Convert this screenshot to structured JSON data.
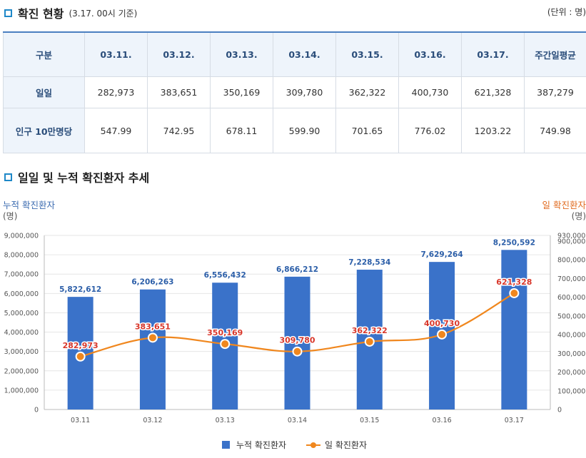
{
  "header": {
    "title": "확진 현황",
    "subtitle": "(3.17. 00시 기준)",
    "unit": "(단위 : 명)"
  },
  "table": {
    "columns": [
      "구분",
      "03.11.",
      "03.12.",
      "03.13.",
      "03.14.",
      "03.15.",
      "03.16.",
      "03.17.",
      "주간일평균"
    ],
    "rows": [
      {
        "label": "일일",
        "values": [
          "282,973",
          "383,651",
          "350,169",
          "309,780",
          "362,322",
          "400,730",
          "621,328",
          "387,279"
        ]
      },
      {
        "label": "인구 10만명당",
        "values": [
          "547.99",
          "742.95",
          "678.11",
          "599.90",
          "701.65",
          "776.02",
          "1203.22",
          "749.98"
        ]
      }
    ]
  },
  "trend_section": {
    "title": "일일 및 누적 확진환자 추세"
  },
  "chart_data": {
    "type": "bar",
    "categories": [
      "03.11",
      "03.12",
      "03.13",
      "03.14",
      "03.15",
      "03.16",
      "03.17"
    ],
    "ylabel_left": "누적 확진환자",
    "ylabel_left_unit": "(명)",
    "ylabel_right": "일 확진환자",
    "ylabel_right_unit": "(명)",
    "ylim_left": [
      0,
      9000000
    ],
    "yticks_left": [
      "0",
      "1,000,000",
      "2,000,000",
      "3,000,000",
      "4,000,000",
      "5,000,000",
      "6,000,000",
      "7,000,000",
      "8,000,000",
      "9,000,000"
    ],
    "ylim_right": [
      0,
      930000
    ],
    "yticks_right": [
      "0",
      "100,000",
      "200,000",
      "300,000",
      "400,000",
      "500,000",
      "600,000",
      "700,000",
      "800,000",
      "900,000",
      "930,000"
    ],
    "series": [
      {
        "name": "누적 확진환자",
        "type": "bar",
        "axis": "left",
        "color": "#3a72c9",
        "values": [
          5822612,
          6206263,
          6556432,
          6866212,
          7228534,
          7629264,
          8250592
        ],
        "labels": [
          "5,822,612",
          "6,206,263",
          "6,556,432",
          "6,866,212",
          "7,228,534",
          "7,629,264",
          "8,250,592"
        ]
      },
      {
        "name": "일 확진환자",
        "type": "line",
        "axis": "right",
        "color": "#f0871e",
        "values": [
          282973,
          383651,
          350169,
          309780,
          362322,
          400730,
          621328
        ],
        "labels": [
          "282,973",
          "383,651",
          "350,169",
          "309,780",
          "362,322",
          "400,730",
          "621,328"
        ]
      }
    ],
    "grid": true,
    "legend": "bottom-center",
    "colors": {
      "bar": "#3a72c9",
      "line": "#f0871e",
      "bar_label": "#2b5ea8",
      "line_label": "#d8362a",
      "left_axis_title": "#3b6bb0",
      "right_axis_title": "#e06a1e"
    }
  }
}
